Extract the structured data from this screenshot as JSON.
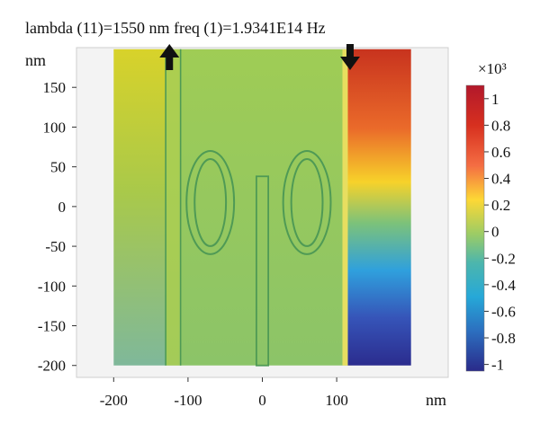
{
  "chart_data": {
    "type": "heatmap",
    "title": "lambda (11)=1550 nm freq (1)=1.9341E14 Hz",
    "xlabel": "nm",
    "ylabel": "nm",
    "xlim": [
      -250,
      250
    ],
    "ylim": [
      -215,
      200
    ],
    "x_ticks": [
      "-200",
      "-100",
      "0",
      "100"
    ],
    "x_tick_values": [
      -200,
      -100,
      0,
      100
    ],
    "y_ticks": [
      "150",
      "100",
      "50",
      "0",
      "-50",
      "-100",
      "-150",
      "-200"
    ],
    "y_tick_values": [
      150,
      100,
      50,
      0,
      -50,
      -100,
      -150,
      -200
    ],
    "colorbar": {
      "multiplier": "×10³",
      "labels": [
        "1",
        "0.8",
        "0.6",
        "0.4",
        "0.2",
        "0",
        "-0.2",
        "-0.4",
        "-0.6",
        "-0.8",
        "-1"
      ],
      "values": [
        1,
        0.8,
        0.6,
        0.4,
        0.2,
        0,
        -0.2,
        -0.4,
        -0.6,
        -0.8,
        -1
      ],
      "range": [
        -1.05,
        1.1
      ],
      "colormap": "rainbow"
    },
    "domain": {
      "x": [
        -200,
        200
      ],
      "y": [
        -200,
        198
      ]
    },
    "field": {
      "left_region": {
        "x": [
          -200,
          -130
        ],
        "top_value": 0.38,
        "bottom_value": 0.02
      },
      "center_region": {
        "x": [
          -130,
          115
        ],
        "value": 0.12
      },
      "right_region": {
        "x": [
          115,
          200
        ],
        "top_value": 1.05,
        "bottom_value": -1.0
      }
    },
    "structures": {
      "waveguide_strips": [
        [
          -130,
          -110
        ],
        [
          5,
          5
        ]
      ],
      "rings": [
        {
          "cx": -70,
          "cy": 5,
          "rx": 32,
          "ry": 65
        },
        {
          "cx": 60,
          "cy": 5,
          "rx": 32,
          "ry": 65
        }
      ],
      "center_bar": {
        "x": [
          -8,
          8
        ],
        "y": [
          -200,
          38
        ]
      }
    },
    "arrows": [
      {
        "x": -125,
        "direction": "up"
      },
      {
        "x": 118,
        "direction": "down"
      }
    ]
  }
}
